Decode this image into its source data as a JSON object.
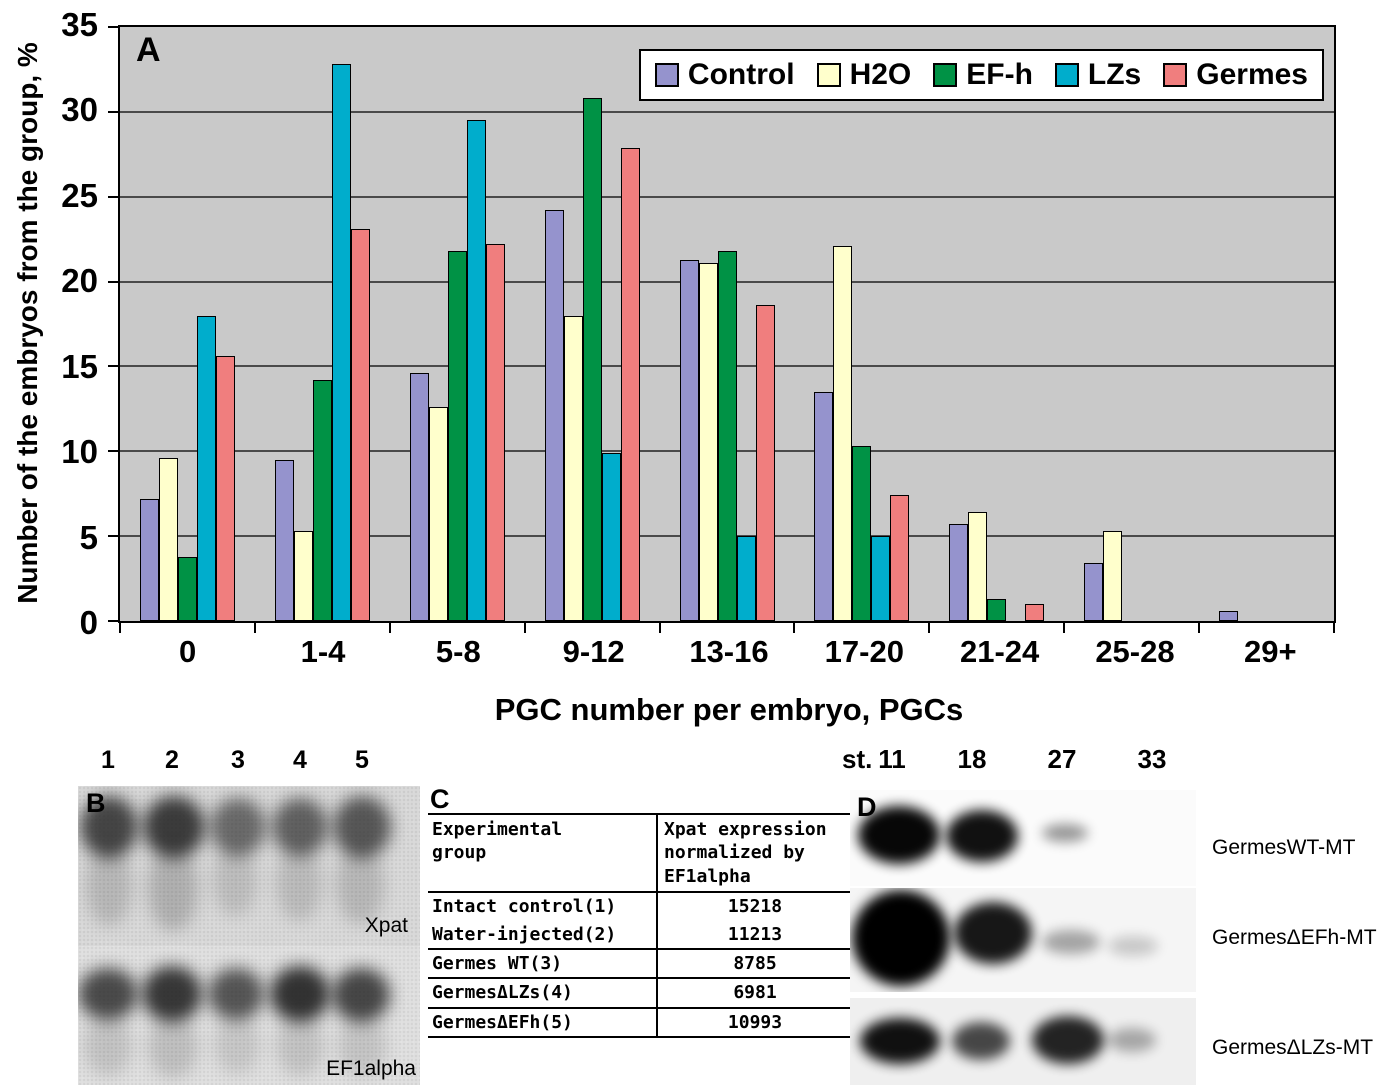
{
  "chart_data": {
    "type": "bar",
    "panel_label": "A",
    "title": "",
    "xlabel": "PGC number per embryo, PGCs",
    "ylabel": "Number of the embryos from the group, %",
    "ylim": [
      0,
      35
    ],
    "yticks": [
      0,
      5,
      10,
      15,
      20,
      25,
      30,
      35
    ],
    "grid": true,
    "legend_position": "top-right-inside",
    "plot_bg": "#c9c9c9",
    "categories": [
      "0",
      "1-4",
      "5-8",
      "9-12",
      "13-16",
      "17-20",
      "21-24",
      "25-28",
      "29+"
    ],
    "series": [
      {
        "name": "Control",
        "color": "#9593cd",
        "values": [
          7.2,
          9.5,
          14.6,
          24.2,
          21.3,
          13.5,
          5.7,
          3.4,
          0.6
        ]
      },
      {
        "name": "H2O",
        "color": "#ffffcc",
        "values": [
          9.6,
          5.3,
          12.6,
          18.0,
          21.1,
          22.1,
          6.4,
          5.3,
          0
        ]
      },
      {
        "name": "EF-h",
        "color": "#009245",
        "values": [
          3.8,
          14.2,
          21.8,
          30.8,
          21.8,
          10.3,
          1.3,
          0,
          0
        ]
      },
      {
        "name": "LZs",
        "color": "#00adcc",
        "values": [
          18.0,
          32.8,
          29.5,
          9.9,
          5.0,
          5.0,
          0,
          0,
          0
        ]
      },
      {
        "name": "Germes",
        "color": "#f07e7e",
        "values": [
          15.6,
          23.1,
          22.2,
          27.9,
          18.6,
          7.4,
          1.0,
          0,
          0
        ]
      }
    ]
  },
  "panel_b": {
    "label": "B",
    "lane_numbers": [
      "1",
      "2",
      "3",
      "4",
      "5"
    ],
    "blot_labels": [
      "Xpat",
      "EF1alpha"
    ]
  },
  "panel_c": {
    "label": "C",
    "table": {
      "headers": [
        "Experimental\ngroup",
        "Xpat expression\nnormalized by\nEF1alpha"
      ],
      "rows": [
        [
          "Intact control(1)",
          "15218"
        ],
        [
          "Water-injected(2)",
          "11213"
        ],
        [
          "Germes WT(3)",
          "8785"
        ],
        [
          "GermesΔLZs(4)",
          "6981"
        ],
        [
          "GermesΔEFh(5)",
          "10993"
        ]
      ]
    }
  },
  "panel_d": {
    "label": "D",
    "stage_prefix": "st.",
    "stages": [
      "11",
      "18",
      "27",
      "33"
    ],
    "row_labels": [
      "GermesWT-MT",
      "GermesΔEFh-MT",
      "GermesΔLZs-MT"
    ]
  }
}
